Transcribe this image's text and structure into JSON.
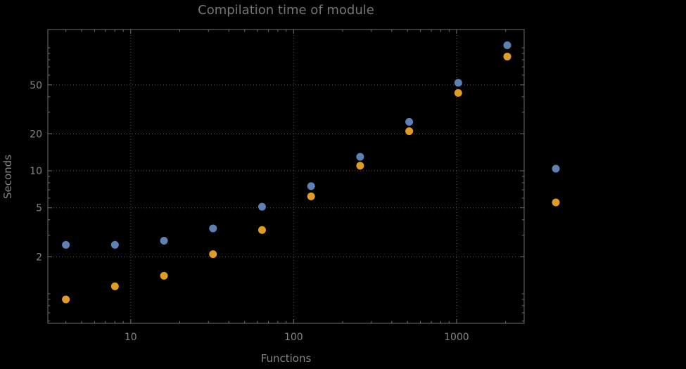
{
  "chart_data": {
    "type": "scatter",
    "title": "Compilation time of module",
    "xlabel": "Functions",
    "ylabel": "Seconds",
    "xscale": "log",
    "yscale": "log",
    "xlim": [
      3.1,
      2600
    ],
    "ylim": [
      0.575,
      141
    ],
    "grid": "dotted",
    "legend_position": "right-of-frame",
    "x_ticks": [
      {
        "value": 10,
        "label": "10"
      },
      {
        "value": 100,
        "label": "100"
      },
      {
        "value": 1000,
        "label": "1000"
      }
    ],
    "y_ticks": [
      {
        "value": 2,
        "label": "2"
      },
      {
        "value": 5,
        "label": "5"
      },
      {
        "value": 10,
        "label": "10"
      },
      {
        "value": 20,
        "label": "20"
      },
      {
        "value": 50,
        "label": "50"
      }
    ],
    "x": [
      4,
      8,
      16,
      32,
      64,
      128,
      256,
      512,
      1024,
      2048
    ],
    "series": [
      {
        "name": "blue-series",
        "color": "#5e81b5",
        "values": [
          2.5,
          2.5,
          2.7,
          3.4,
          5.1,
          7.5,
          13,
          25,
          52,
          105
        ]
      },
      {
        "name": "orange-series",
        "color": "#e19c24",
        "values": [
          0.9,
          1.15,
          1.4,
          2.1,
          3.3,
          6.2,
          11,
          21,
          43,
          85
        ]
      }
    ],
    "legend_markers": [
      {
        "color": "#5e81b5"
      },
      {
        "color": "#e19c24"
      }
    ]
  },
  "style": {
    "background": "#000000",
    "title_color": "#757575",
    "axis_label_color": "#848484",
    "tick_label_color": "#848484",
    "frame_color": "#6e6e6e",
    "grid_color": "#555555",
    "point_radius": 5.5
  }
}
